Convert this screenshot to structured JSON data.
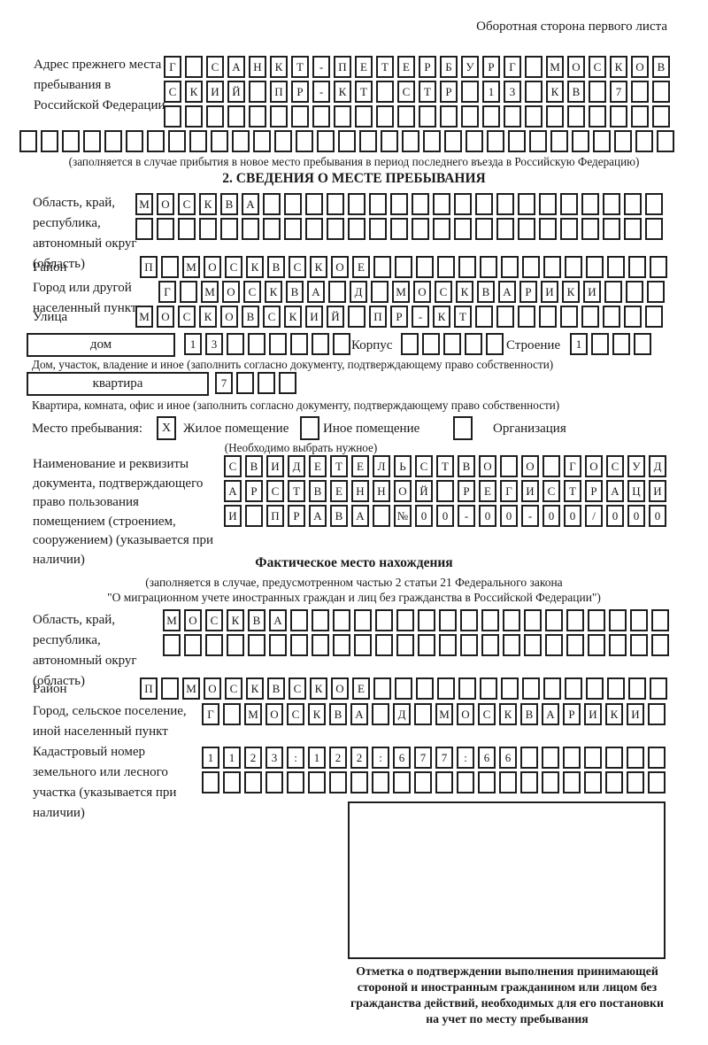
{
  "header": {
    "note": "Оборотная сторона первого листа"
  },
  "prev_address": {
    "label": "Адрес прежнего места пребывания в Российской Федерации",
    "row1": {
      "text": "Г САНКТ-ПЕТЕРБУРГ МОСКОВ",
      "len": 24
    },
    "row2": {
      "text": "СКИЙ ПР-КТ СТР 13 КВ 7",
      "len": 24
    },
    "row3": {
      "text": "",
      "len": 24
    },
    "row4": {
      "text": "",
      "len": 31
    },
    "note": "(заполняется в случае прибытия в новое место пребывания в период последнего въезда в Российскую Федерацию)"
  },
  "section2": {
    "title": "2. СВЕДЕНИЯ О МЕСТЕ ПРЕБЫВАНИЯ",
    "region": {
      "label": "Область, край, республика, автономный округ (область)",
      "row1": {
        "text": "МОСКВА",
        "len": 25
      },
      "row2": {
        "text": "",
        "len": 25
      }
    },
    "district": {
      "label": "Район",
      "row": {
        "text": "П МОСКВСКОЕ",
        "len": 25
      }
    },
    "city": {
      "label": "Город или другой населенный пункт",
      "row": {
        "text": "Г МОСКВА Д МОСКВАРИКИ",
        "len": 24
      }
    },
    "street": {
      "label": "Улица",
      "row": {
        "text": "МОСКОВСКИЙ ПР-КТ",
        "len": 25
      }
    },
    "house": {
      "box_label": "дом",
      "cells": {
        "text": "13",
        "len": 8
      },
      "korpus_label": "Корпус",
      "korpus_cells": {
        "text": "",
        "len": 5
      },
      "stroenie_label": "Строение",
      "stroenie_cells": {
        "text": "1",
        "len": 4
      },
      "note": "Дом, участок, владение и иное (заполнить согласно документу, подтверждающему право собственности)"
    },
    "apartment": {
      "box_label": "квартира",
      "cells": {
        "text": "7",
        "len": 4
      },
      "note": "Квартира, комната, офис и иное (заполнить согласно документу, подтверждающему право собственности)"
    },
    "stay_type": {
      "label": "Место пребывания:",
      "options": [
        {
          "label": "Жилое помещение",
          "mark": "X"
        },
        {
          "label": "Иное помещение",
          "mark": ""
        },
        {
          "label": "Организация",
          "mark": ""
        }
      ],
      "note": "(Необходимо выбрать нужное)"
    },
    "document": {
      "label": "Наименование и реквизиты документа, подтверждающего право пользования помещением (строением, сооружением) (указывается при наличии)",
      "row1": {
        "text": "СВИДЕТЕЛЬСТВО О ГОСУД",
        "len": 21
      },
      "row2": {
        "text": "АРСТВЕННОЙ РЕГИСТРАЦИ",
        "len": 21
      },
      "row3": {
        "text": "И ПРАВА №00-00-00/000",
        "len": 21
      }
    }
  },
  "actual_location": {
    "title": "Фактическое место нахождения",
    "note_lines": [
      "(заполняется в случае, предусмотренном частью 2 статьи 21 Федерального закона",
      "\"О миграционном учете иностранных граждан и лиц без гражданства в Российской Федерации\")"
    ],
    "region": {
      "label": "Область, край, республика, автономный округ (область)",
      "row1": {
        "text": "МОСКВА",
        "len": 24
      },
      "row2": {
        "text": "",
        "len": 24
      }
    },
    "district": {
      "label": "Район",
      "row": {
        "text": "П МОСКВСКОЕ",
        "len": 25
      }
    },
    "city": {
      "label": "Город, сельское поселение, иной населенный пункт",
      "row": {
        "text": "Г МОСКВА Д МОСКВАРИКИ",
        "len": 22
      }
    },
    "cadastral": {
      "label": "Кадастровый номер земельного или лесного участка (указывается при наличии)",
      "row1": {
        "text": "1123:122:677:66",
        "len": 22
      },
      "row2": {
        "text": "",
        "len": 22
      }
    },
    "stamp_note_lines": [
      "Отметка о подтверждении выполнения принимающей",
      "стороной и иностранным гражданином или лицом без",
      "гражданства действий, необходимых для его постановки",
      "на учет по месту пребывания"
    ]
  }
}
